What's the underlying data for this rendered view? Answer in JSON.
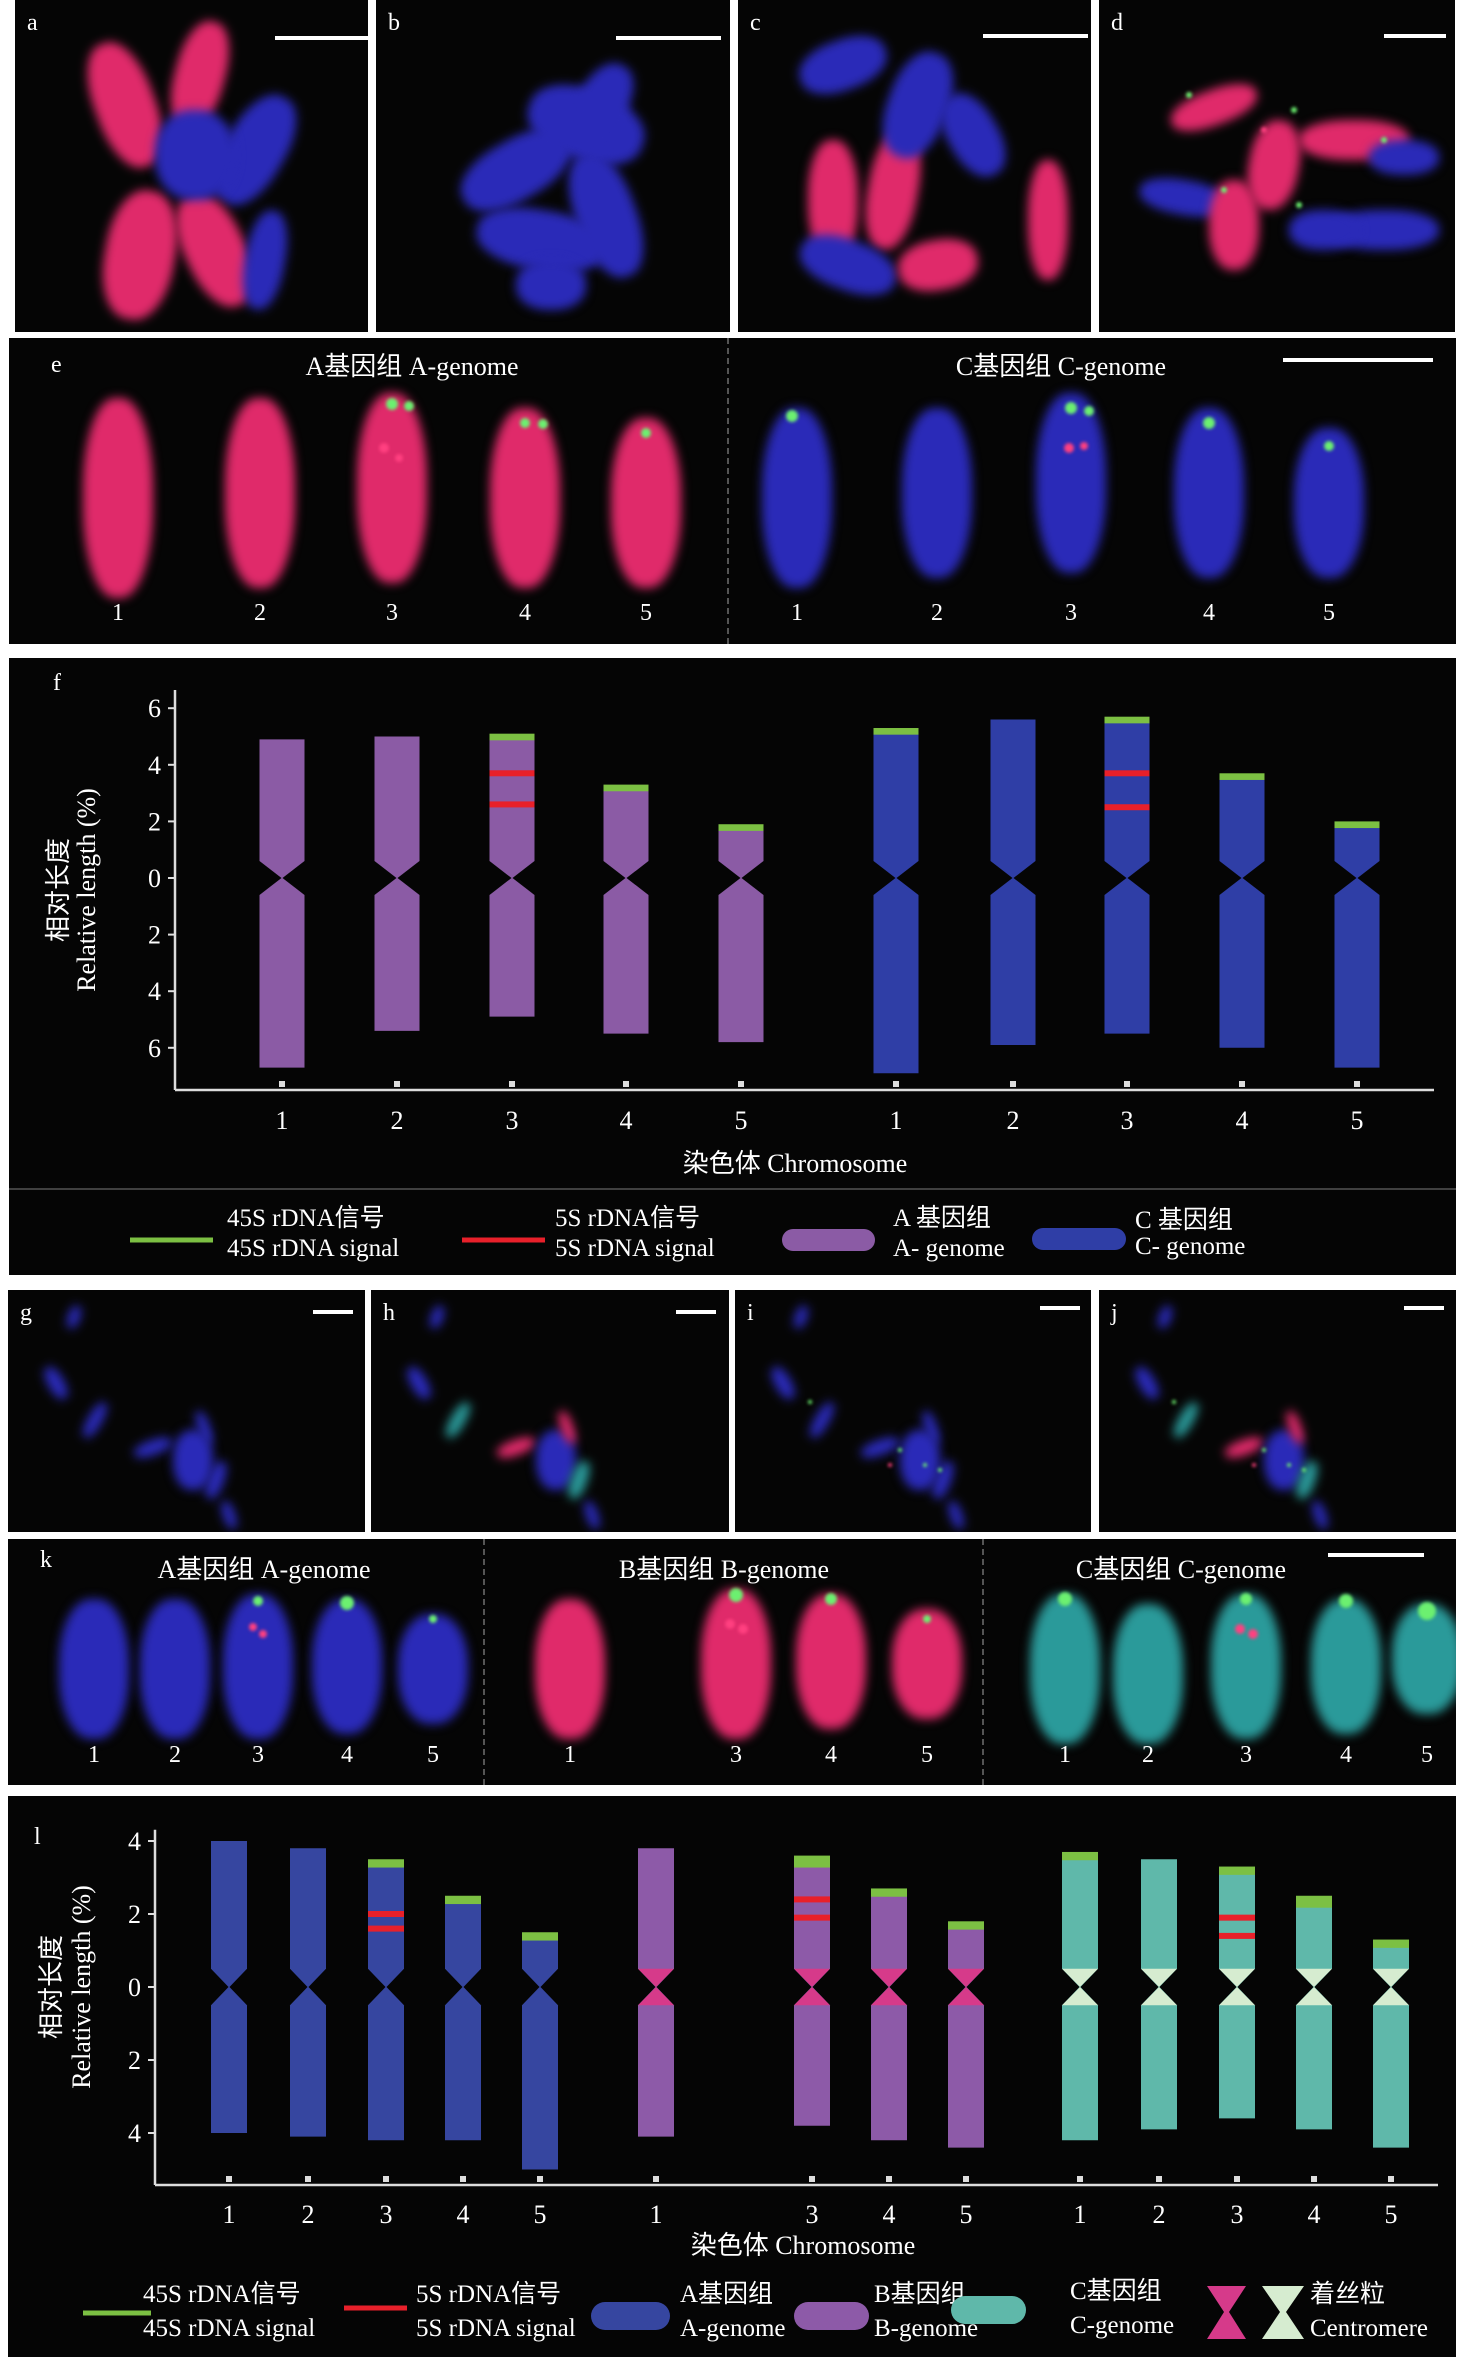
{
  "panels_top": [
    {
      "letter": "a"
    },
    {
      "letter": "b"
    },
    {
      "letter": "c"
    },
    {
      "letter": "d"
    }
  ],
  "panels_mid": [
    {
      "letter": "g"
    },
    {
      "letter": "h"
    },
    {
      "letter": "i"
    },
    {
      "letter": "j"
    }
  ],
  "panel_e": {
    "letter": "e",
    "a_label": "A基因组  A-genome",
    "c_label": "C基因组  C-genome",
    "a_numbers": [
      "1",
      "2",
      "3",
      "4",
      "5"
    ],
    "c_numbers": [
      "1",
      "2",
      "3",
      "4",
      "5"
    ]
  },
  "panel_k": {
    "letter": "k",
    "a_label": "A基因组  A-genome",
    "b_label": "B基因组  B-genome",
    "c_label": "C基因组  C-genome",
    "a_numbers": [
      "1",
      "2",
      "3",
      "4",
      "5"
    ],
    "b_numbers": [
      "1",
      "3",
      "4",
      "5"
    ],
    "c_numbers": [
      "1",
      "2",
      "3",
      "4",
      "5"
    ]
  },
  "colors": {
    "signal_45s": "#7cc043",
    "signal_5s": "#e8202a",
    "f_a": "#8b5ba5",
    "f_c": "#2f3ea6",
    "l_a": "#3646a0",
    "l_b": "#8d5aa8",
    "l_c": "#5fb8aa",
    "cen_b": "#d63a8a",
    "cen_c": "#d6ecd0",
    "micro_pink": "#e02a6a",
    "micro_blue": "#2a2ab8",
    "micro_teal": "#2a9a9a"
  },
  "legend_f": {
    "s45_cn": "45S rDNA信号",
    "s45_en": "45S rDNA signal",
    "s5_cn": "5S rDNA信号",
    "s5_en": "5S rDNA signal",
    "a_cn": "A 基因组",
    "a_en": "A- genome",
    "c_cn": "C 基因组",
    "c_en": "C- genome"
  },
  "legend_l": {
    "s45_cn": "45S rDNA信号",
    "s45_en": "45S rDNA signal",
    "s5_cn": "5S rDNA信号",
    "s5_en": "5S rDNA signal",
    "a_cn": "A基因组",
    "a_en": "A-genome",
    "b_cn": "B基因组",
    "b_en": "B-genome",
    "c_cn": "C基因组",
    "c_en": "C-genome",
    "cen_cn": "着丝粒",
    "cen_en": "Centromere"
  },
  "chart_data": [
    {
      "panel": "f",
      "type": "bar",
      "title": "",
      "xlabel": "染色体  Chromosome",
      "ylabel_cn": "相对长度",
      "ylabel_en": "Relative length (%)",
      "yticks": [
        "6",
        "4",
        "2",
        "0",
        "2",
        "4",
        "6"
      ],
      "ylim": [
        -7,
        6.5
      ],
      "categories": [
        "1",
        "2",
        "3",
        "4",
        "5",
        "1",
        "2",
        "3",
        "4",
        "5"
      ],
      "series": [
        {
          "name": "A-genome",
          "color_key": "f_a",
          "chromosomes": [
            {
              "label": "1",
              "short_arm": 4.9,
              "long_arm": 6.7,
              "s45": null,
              "s5": []
            },
            {
              "label": "2",
              "short_arm": 5.0,
              "long_arm": 5.4,
              "s45": null,
              "s5": []
            },
            {
              "label": "3",
              "short_arm": 4.9,
              "long_arm": 4.9,
              "s45": 5.1,
              "s5": [
                3.7,
                2.6
              ]
            },
            {
              "label": "4",
              "short_arm": 3.1,
              "long_arm": 5.5,
              "s45": 3.3,
              "s5": []
            },
            {
              "label": "5",
              "short_arm": 1.7,
              "long_arm": 5.8,
              "s45": 1.9,
              "s5": []
            }
          ]
        },
        {
          "name": "C-genome",
          "color_key": "f_c",
          "chromosomes": [
            {
              "label": "1",
              "short_arm": 5.1,
              "long_arm": 6.9,
              "s45": 5.3,
              "s5": []
            },
            {
              "label": "2",
              "short_arm": 5.6,
              "long_arm": 5.9,
              "s45": null,
              "s5": []
            },
            {
              "label": "3",
              "short_arm": 5.5,
              "long_arm": 5.5,
              "s45": 5.7,
              "s5": [
                3.7,
                2.5
              ]
            },
            {
              "label": "4",
              "short_arm": 3.5,
              "long_arm": 6.0,
              "s45": 3.7,
              "s5": []
            },
            {
              "label": "5",
              "short_arm": 1.8,
              "long_arm": 6.7,
              "s45": 2.0,
              "s5": []
            }
          ]
        }
      ]
    },
    {
      "panel": "l",
      "type": "bar",
      "title": "",
      "xlabel": "染色体  Chromosome",
      "ylabel_cn": "相对长度",
      "ylabel_en": "Relative length (%)",
      "yticks": [
        "4",
        "2",
        "0",
        "2",
        "4"
      ],
      "ylim": [
        -5.5,
        4.2
      ],
      "categories": [
        "1",
        "2",
        "3",
        "4",
        "5",
        "1",
        "3",
        "4",
        "5",
        "1",
        "2",
        "3",
        "4",
        "5"
      ],
      "series": [
        {
          "name": "A-genome",
          "color_key": "l_a",
          "centromere": null,
          "chromosomes": [
            {
              "label": "1",
              "short_arm": 4.0,
              "long_arm": 4.0,
              "s45": null,
              "s5": []
            },
            {
              "label": "2",
              "short_arm": 3.8,
              "long_arm": 4.1,
              "s45": null,
              "s5": []
            },
            {
              "label": "3",
              "short_arm": 3.3,
              "long_arm": 4.2,
              "s45": 3.5,
              "s5": [
                2.0,
                1.6
              ]
            },
            {
              "label": "4",
              "short_arm": 2.3,
              "long_arm": 4.2,
              "s45": 2.5,
              "s5": []
            },
            {
              "label": "5",
              "short_arm": 1.3,
              "long_arm": 5.0,
              "s45": 1.5,
              "s5": []
            }
          ]
        },
        {
          "name": "B-genome",
          "color_key": "l_b",
          "centromere": "cen_b",
          "chromosomes": [
            {
              "label": "1",
              "short_arm": 3.8,
              "long_arm": 4.1,
              "s45": null,
              "s5": []
            },
            {
              "label": "3",
              "short_arm": 3.3,
              "long_arm": 3.8,
              "s45": 3.6,
              "s5": [
                2.4,
                1.9
              ]
            },
            {
              "label": "4",
              "short_arm": 2.5,
              "long_arm": 4.2,
              "s45": 2.7,
              "s5": []
            },
            {
              "label": "5",
              "short_arm": 1.6,
              "long_arm": 4.4,
              "s45": 1.8,
              "s5": []
            }
          ]
        },
        {
          "name": "C-genome",
          "color_key": "l_c",
          "centromere": "cen_c",
          "chromosomes": [
            {
              "label": "1",
              "short_arm": 3.5,
              "long_arm": 4.2,
              "s45": 3.7,
              "s5": []
            },
            {
              "label": "2",
              "short_arm": 3.5,
              "long_arm": 3.9,
              "s45": null,
              "s5": []
            },
            {
              "label": "3",
              "short_arm": 3.1,
              "long_arm": 3.6,
              "s45": 3.3,
              "s5": [
                1.9,
                1.4
              ]
            },
            {
              "label": "4",
              "short_arm": 2.2,
              "long_arm": 3.9,
              "s45": 2.5,
              "s5": []
            },
            {
              "label": "5",
              "short_arm": 1.1,
              "long_arm": 4.4,
              "s45": 1.3,
              "s5": []
            }
          ]
        }
      ]
    }
  ]
}
